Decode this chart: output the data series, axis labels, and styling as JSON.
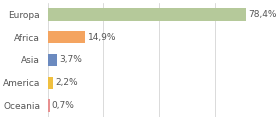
{
  "categories": [
    "Europa",
    "Africa",
    "Asia",
    "America",
    "Oceania"
  ],
  "values": [
    78.4,
    14.9,
    3.7,
    2.2,
    0.7
  ],
  "bar_colors": [
    "#b5c99a",
    "#f4a460",
    "#6b8abf",
    "#f0c040",
    "#e89090"
  ],
  "labels": [
    "78,4%",
    "14,9%",
    "3,7%",
    "2,2%",
    "0,7%"
  ],
  "background_color": "#ffffff",
  "xlim": [
    0,
    88
  ],
  "bar_height": 0.55,
  "label_fontsize": 6.5,
  "tick_fontsize": 6.5,
  "grid_ticks": [
    0,
    22,
    44,
    66,
    88
  ],
  "grid_color": "#cccccc",
  "text_color": "#555555"
}
